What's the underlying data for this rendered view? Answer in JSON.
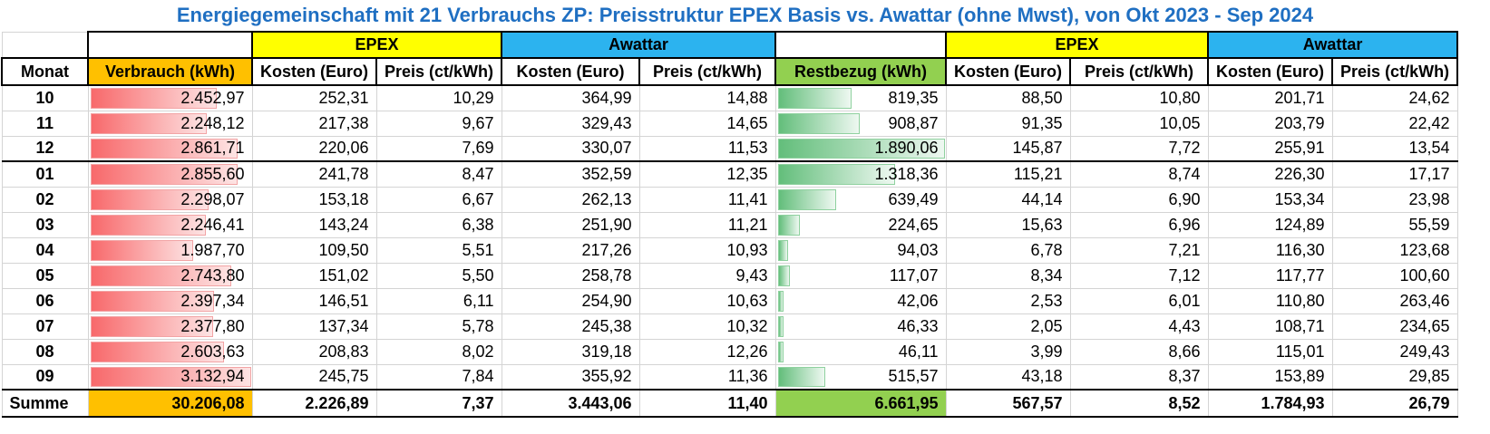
{
  "title": "Energiegemeinschaft mit 21 Verbrauchs ZP: Preisstruktur EPEX Basis vs. Awattar (ohne Mwst), von Okt 2023 - Sep 2024",
  "groups": {
    "epex": "EPEX",
    "awattar": "Awattar"
  },
  "headers": {
    "monat": "Monat",
    "verbrauch": "Verbrauch (kWh)",
    "kosten": "Kosten (Euro)",
    "preis": "Preis (ct/kWh)",
    "restbezug": "Restbezug (kWh)"
  },
  "rows": [
    {
      "monat": "10",
      "verbrauch": "2.452,97",
      "verbrauch_num": 2452.97,
      "epex_k": "252,31",
      "epex_p": "10,29",
      "aw_k": "364,99",
      "aw_p": "14,88",
      "rest": "819,35",
      "rest_num": 819.35,
      "epex2_k": "88,50",
      "epex2_p": "10,80",
      "aw2_k": "201,71",
      "aw2_p": "24,62"
    },
    {
      "monat": "11",
      "verbrauch": "2.248,12",
      "verbrauch_num": 2248.12,
      "epex_k": "217,38",
      "epex_p": "9,67",
      "aw_k": "329,43",
      "aw_p": "14,65",
      "rest": "908,87",
      "rest_num": 908.87,
      "epex2_k": "91,35",
      "epex2_p": "10,05",
      "aw2_k": "203,79",
      "aw2_p": "22,42"
    },
    {
      "monat": "12",
      "verbrauch": "2.861,71",
      "verbrauch_num": 2861.71,
      "epex_k": "220,06",
      "epex_p": "7,69",
      "aw_k": "330,07",
      "aw_p": "11,53",
      "rest": "1.890,06",
      "rest_num": 1890.06,
      "epex2_k": "145,87",
      "epex2_p": "7,72",
      "aw2_k": "255,91",
      "aw2_p": "13,54"
    },
    {
      "monat": "01",
      "verbrauch": "2.855,60",
      "verbrauch_num": 2855.6,
      "epex_k": "241,78",
      "epex_p": "8,47",
      "aw_k": "352,59",
      "aw_p": "12,35",
      "rest": "1.318,36",
      "rest_num": 1318.36,
      "epex2_k": "115,21",
      "epex2_p": "8,74",
      "aw2_k": "226,30",
      "aw2_p": "17,17"
    },
    {
      "monat": "02",
      "verbrauch": "2.298,07",
      "verbrauch_num": 2298.07,
      "epex_k": "153,18",
      "epex_p": "6,67",
      "aw_k": "262,13",
      "aw_p": "11,41",
      "rest": "639,49",
      "rest_num": 639.49,
      "epex2_k": "44,14",
      "epex2_p": "6,90",
      "aw2_k": "153,34",
      "aw2_p": "23,98"
    },
    {
      "monat": "03",
      "verbrauch": "2.246,41",
      "verbrauch_num": 2246.41,
      "epex_k": "143,24",
      "epex_p": "6,38",
      "aw_k": "251,90",
      "aw_p": "11,21",
      "rest": "224,65",
      "rest_num": 224.65,
      "epex2_k": "15,63",
      "epex2_p": "6,96",
      "aw2_k": "124,89",
      "aw2_p": "55,59"
    },
    {
      "monat": "04",
      "verbrauch": "1.987,70",
      "verbrauch_num": 1987.7,
      "epex_k": "109,50",
      "epex_p": "5,51",
      "aw_k": "217,26",
      "aw_p": "10,93",
      "rest": "94,03",
      "rest_num": 94.03,
      "epex2_k": "6,78",
      "epex2_p": "7,21",
      "aw2_k": "116,30",
      "aw2_p": "123,68"
    },
    {
      "monat": "05",
      "verbrauch": "2.743,80",
      "verbrauch_num": 2743.8,
      "epex_k": "151,02",
      "epex_p": "5,50",
      "aw_k": "258,78",
      "aw_p": "9,43",
      "rest": "117,07",
      "rest_num": 117.07,
      "epex2_k": "8,34",
      "epex2_p": "7,12",
      "aw2_k": "117,77",
      "aw2_p": "100,60"
    },
    {
      "monat": "06",
      "verbrauch": "2.397,34",
      "verbrauch_num": 2397.34,
      "epex_k": "146,51",
      "epex_p": "6,11",
      "aw_k": "254,90",
      "aw_p": "10,63",
      "rest": "42,06",
      "rest_num": 42.06,
      "epex2_k": "2,53",
      "epex2_p": "6,01",
      "aw2_k": "110,80",
      "aw2_p": "263,46"
    },
    {
      "monat": "07",
      "verbrauch": "2.377,80",
      "verbrauch_num": 2377.8,
      "epex_k": "137,34",
      "epex_p": "5,78",
      "aw_k": "245,38",
      "aw_p": "10,32",
      "rest": "46,33",
      "rest_num": 46.33,
      "epex2_k": "2,05",
      "epex2_p": "4,43",
      "aw2_k": "108,71",
      "aw2_p": "234,65"
    },
    {
      "monat": "08",
      "verbrauch": "2.603,63",
      "verbrauch_num": 2603.63,
      "epex_k": "208,83",
      "epex_p": "8,02",
      "aw_k": "319,18",
      "aw_p": "12,26",
      "rest": "46,11",
      "rest_num": 46.11,
      "epex2_k": "3,99",
      "epex2_p": "8,66",
      "aw2_k": "115,01",
      "aw2_p": "249,43"
    },
    {
      "monat": "09",
      "verbrauch": "3.132,94",
      "verbrauch_num": 3132.94,
      "epex_k": "245,75",
      "epex_p": "7,84",
      "aw_k": "355,92",
      "aw_p": "11,36",
      "rest": "515,57",
      "rest_num": 515.57,
      "epex2_k": "43,18",
      "epex2_p": "8,37",
      "aw2_k": "153,89",
      "aw2_p": "29,85"
    }
  ],
  "summe": {
    "label": "Summe",
    "verbrauch": "30.206,08",
    "epex_k": "2.226,89",
    "epex_p": "7,37",
    "aw_k": "3.443,06",
    "aw_p": "11,40",
    "rest": "6.661,95",
    "epex2_k": "567,57",
    "epex2_p": "8,52",
    "aw2_k": "1.784,93",
    "aw2_p": "26,79"
  },
  "colors": {
    "epex": "#ffff00",
    "awattar": "#2cb3ef",
    "verbrauch": "#ffc000",
    "restbezug": "#92d050",
    "title": "#1f6fc2",
    "bar_red": "#f8696b",
    "bar_green": "#63be7b"
  }
}
